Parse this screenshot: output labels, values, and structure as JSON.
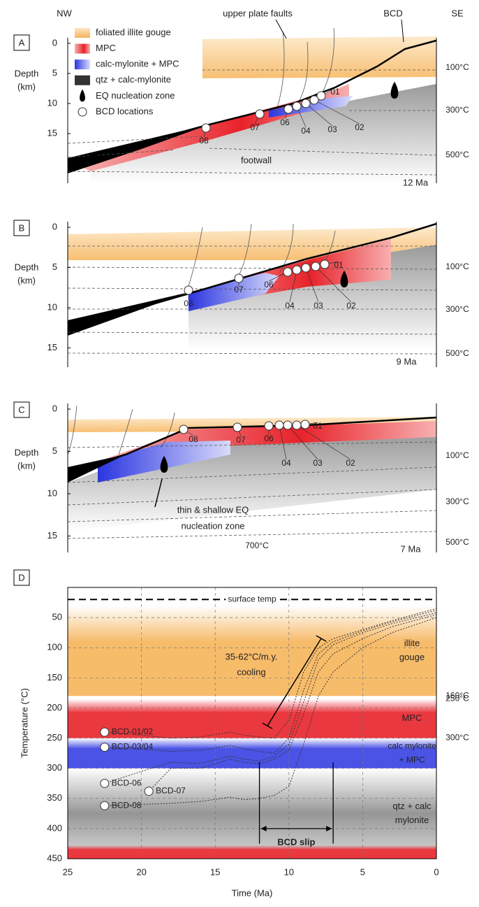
{
  "panels": [
    {
      "label": "A",
      "nw": "NW",
      "se": "SE",
      "depth_label": [
        "Depth",
        "(km)"
      ],
      "depth_ticks": [
        0,
        5,
        10,
        15
      ],
      "temps": [
        "100°C",
        "300°C",
        "500°C"
      ],
      "age": "12 Ma",
      "bcd": [
        "01",
        "02",
        "03",
        "04",
        "06",
        "07",
        "08"
      ],
      "notes": [
        "upper plate faults",
        "BCD",
        "footwall"
      ],
      "legend": [
        "foliated illite gouge",
        "MPC",
        "calc-mylonite + MPC",
        "qtz + calc-mylonite",
        "EQ nucleation zone",
        "BCD locations"
      ]
    },
    {
      "label": "B",
      "depth_label": [
        "Depth",
        "(km)"
      ],
      "depth_ticks": [
        0,
        5,
        10,
        15
      ],
      "temps": [
        "100°C",
        "300°C",
        "500°C"
      ],
      "age": "9 Ma",
      "bcd": [
        "01",
        "02",
        "03",
        "04",
        "06",
        "07",
        "08"
      ]
    },
    {
      "label": "C",
      "depth_label": [
        "Depth",
        "(km)"
      ],
      "depth_ticks": [
        0,
        5,
        10,
        15
      ],
      "temps": [
        "100°C",
        "300°C",
        "500°C"
      ],
      "age": "7 Ma",
      "bcd": [
        "01",
        "02",
        "03",
        "04",
        "06",
        "07",
        "08"
      ],
      "notes": [
        "thin & shallow EQ",
        "nucleation zone",
        "700°C"
      ]
    }
  ],
  "chart_data": {
    "type": "line",
    "label": "D",
    "xlabel": "Time (Ma)",
    "ylabel": "Temperature (°C)",
    "xlim": [
      25,
      0
    ],
    "xticks": [
      25,
      20,
      15,
      10,
      5,
      0
    ],
    "ylim": [
      0,
      450
    ],
    "yticks": [
      50,
      100,
      150,
      200,
      250,
      300,
      350,
      400,
      450
    ],
    "grid": true,
    "surface_temp": {
      "value": 20,
      "label": "surface temp"
    },
    "bands": [
      {
        "name": [
          "illite",
          "gouge"
        ],
        "range": [
          30,
          180
        ],
        "color": "#f6b45a",
        "right_label": "160°C"
      },
      {
        "name": [
          "MPC"
        ],
        "range": [
          185,
          250
        ],
        "color": "#e8222a",
        "right_label": "250°C"
      },
      {
        "name": [
          "calc mylonite",
          "+ MPC"
        ],
        "range": [
          250,
          300
        ],
        "color": "#2a35e0",
        "right_label": "300°C"
      },
      {
        "name": [
          "qtz + calc",
          "mylonite"
        ],
        "range": [
          300,
          450
        ],
        "color": "#8a8a8a"
      }
    ],
    "slip_window": [
      12,
      7
    ],
    "slip_label": "BCD slip",
    "cooling_label": [
      "35-62°C/m.y.",
      "cooling"
    ],
    "series": [
      {
        "name": "BCD-01/02",
        "x": [
          22.5,
          20,
          18,
          16,
          14,
          13,
          12,
          11,
          10,
          9,
          8,
          7,
          5,
          3,
          0
        ],
        "values": [
          240,
          245,
          250,
          248,
          240,
          245,
          248,
          250,
          220,
          140,
          100,
          85,
          70,
          55,
          35
        ]
      },
      {
        "name": "BCD-03/04",
        "x": [
          22.5,
          20,
          18,
          16,
          14,
          13,
          12,
          11,
          10,
          9,
          8,
          7,
          5,
          3,
          0
        ],
        "values": [
          265,
          268,
          272,
          270,
          262,
          268,
          272,
          275,
          250,
          170,
          110,
          90,
          72,
          57,
          38
        ]
      },
      {
        "name": "BCD-06",
        "x": [
          22.5,
          20,
          18,
          16,
          14,
          13,
          12,
          11,
          10,
          9,
          8,
          7,
          5,
          3,
          0
        ],
        "values": [
          325,
          305,
          290,
          292,
          280,
          285,
          288,
          280,
          260,
          190,
          120,
          95,
          75,
          60,
          42
        ]
      },
      {
        "name": "BCD-07",
        "x": [
          19.5,
          18,
          16,
          14,
          13,
          12,
          11,
          10,
          9,
          8,
          7,
          5,
          3,
          0
        ],
        "values": [
          338,
          300,
          300,
          285,
          290,
          292,
          285,
          270,
          210,
          140,
          110,
          85,
          65,
          45
        ]
      },
      {
        "name": "BCD-08",
        "x": [
          22.5,
          20,
          18,
          16,
          14,
          13,
          12,
          11,
          10,
          9,
          8,
          7,
          5,
          3,
          0
        ],
        "values": [
          362,
          360,
          358,
          355,
          348,
          352,
          350,
          345,
          330,
          260,
          180,
          140,
          100,
          75,
          50
        ]
      }
    ]
  }
}
